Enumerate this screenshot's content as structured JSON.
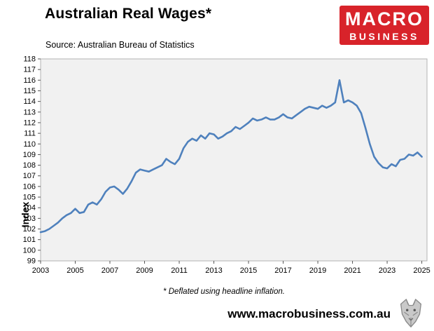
{
  "header": {
    "title": "Australian Real Wages*",
    "source": "Source: Australian Bureau of Statistics",
    "logo": {
      "line1": "MACRO",
      "line2": "BUSINESS",
      "bg_color": "#d8232a",
      "text_color": "#ffffff"
    }
  },
  "chart_data": {
    "type": "line",
    "title": "Australian Real Wages*",
    "xlabel": "",
    "ylabel": "Index",
    "ylim": [
      99,
      118
    ],
    "xlim": [
      2003,
      2025.3
    ],
    "yticks": [
      99,
      100,
      101,
      102,
      103,
      104,
      105,
      106,
      107,
      108,
      109,
      110,
      111,
      112,
      113,
      114,
      115,
      116,
      117,
      118
    ],
    "xticks": [
      2003,
      2005,
      2007,
      2009,
      2011,
      2013,
      2015,
      2017,
      2019,
      2021,
      2023,
      2025
    ],
    "grid": false,
    "legend": "none",
    "line_color": "#4f81bd",
    "plot_bg": "#f1f1f1",
    "plot_border": "#b3b3b3",
    "x": [
      2003.0,
      2003.25,
      2003.5,
      2003.75,
      2004.0,
      2004.25,
      2004.5,
      2004.75,
      2005.0,
      2005.25,
      2005.5,
      2005.75,
      2006.0,
      2006.25,
      2006.5,
      2006.75,
      2007.0,
      2007.25,
      2007.5,
      2007.75,
      2008.0,
      2008.25,
      2008.5,
      2008.75,
      2009.0,
      2009.25,
      2009.5,
      2009.75,
      2010.0,
      2010.25,
      2010.5,
      2010.75,
      2011.0,
      2011.25,
      2011.5,
      2011.75,
      2012.0,
      2012.25,
      2012.5,
      2012.75,
      2013.0,
      2013.25,
      2013.5,
      2013.75,
      2014.0,
      2014.25,
      2014.5,
      2014.75,
      2015.0,
      2015.25,
      2015.5,
      2015.75,
      2016.0,
      2016.25,
      2016.5,
      2016.75,
      2017.0,
      2017.25,
      2017.5,
      2017.75,
      2018.0,
      2018.25,
      2018.5,
      2018.75,
      2019.0,
      2019.25,
      2019.5,
      2019.75,
      2020.0,
      2020.25,
      2020.5,
      2020.75,
      2021.0,
      2021.25,
      2021.5,
      2021.75,
      2022.0,
      2022.25,
      2022.5,
      2022.75,
      2023.0,
      2023.25,
      2023.5,
      2023.75,
      2024.0,
      2024.25,
      2024.5,
      2024.75,
      2025.0
    ],
    "values": [
      101.7,
      101.8,
      102.0,
      102.3,
      102.6,
      103.0,
      103.3,
      103.5,
      103.9,
      103.5,
      103.6,
      104.3,
      104.5,
      104.3,
      104.8,
      105.5,
      105.9,
      106.0,
      105.7,
      105.3,
      105.8,
      106.5,
      107.3,
      107.6,
      107.5,
      107.4,
      107.6,
      107.8,
      108.0,
      108.6,
      108.3,
      108.1,
      108.6,
      109.6,
      110.2,
      110.5,
      110.3,
      110.8,
      110.5,
      111.0,
      110.9,
      110.5,
      110.7,
      111.0,
      111.2,
      111.6,
      111.4,
      111.7,
      112.0,
      112.4,
      112.2,
      112.3,
      112.5,
      112.3,
      112.3,
      112.5,
      112.8,
      112.5,
      112.4,
      112.7,
      113.0,
      113.3,
      113.5,
      113.4,
      113.3,
      113.6,
      113.4,
      113.6,
      113.9,
      116.0,
      113.9,
      114.1,
      113.9,
      113.6,
      112.9,
      111.5,
      110.0,
      108.8,
      108.2,
      107.8,
      107.7,
      108.1,
      107.9,
      108.5,
      108.6,
      109.0,
      108.9,
      109.2,
      108.8
    ]
  },
  "footer": {
    "footnote": "* Deflated using headline inflation.",
    "website": "www.macrobusiness.com.au"
  }
}
